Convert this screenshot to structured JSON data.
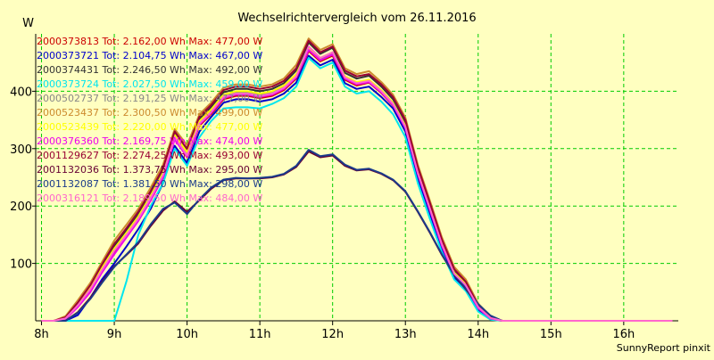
{
  "chart_data": {
    "type": "line",
    "title": "Wechselrichtervergleich vom 26.11.2016",
    "ylabel": "W",
    "xlabel": "",
    "footer": "SunnyReport pinxit",
    "background": "#ffffc0",
    "grid_color": "#00cc00",
    "grid": true,
    "legend_position": "top-left",
    "xlim": [
      7.92,
      16.75
    ],
    "ylim": [
      0,
      500
    ],
    "x_ticks": [
      8,
      9,
      10,
      11,
      12,
      13,
      14,
      15,
      16
    ],
    "x_tick_labels": [
      "8h",
      "9h",
      "10h",
      "11h",
      "12h",
      "13h",
      "14h",
      "15h",
      "16h"
    ],
    "y_ticks": [
      100,
      200,
      300,
      400
    ],
    "y_tick_labels": [
      "100",
      "200",
      "300",
      "400"
    ],
    "x": [
      8.0,
      8.17,
      8.33,
      8.5,
      8.67,
      8.83,
      9.0,
      9.17,
      9.33,
      9.5,
      9.67,
      9.83,
      10.0,
      10.17,
      10.33,
      10.5,
      10.67,
      10.83,
      11.0,
      11.17,
      11.33,
      11.5,
      11.67,
      11.83,
      12.0,
      12.17,
      12.33,
      12.5,
      12.67,
      12.83,
      13.0,
      13.17,
      13.33,
      13.5,
      13.67,
      13.83,
      14.0,
      14.17,
      14.33,
      14.5,
      14.67,
      14.83,
      15.0,
      15.17,
      15.33,
      15.5,
      15.67,
      15.83,
      16.0,
      16.17,
      16.33,
      16.5,
      16.67
    ],
    "series": [
      {
        "name": "2000373813",
        "legend": "2000373813 Tot: 2.162,00 Wh Max: 477,00 W",
        "color": "#cc0000",
        "values": [
          0,
          0,
          3,
          26,
          52,
          86,
          118,
          148,
          175,
          210,
          250,
          318,
          285,
          340,
          360,
          386,
          392,
          392,
          388,
          392,
          402,
          422,
          470,
          452,
          462,
          420,
          410,
          415,
          397,
          375,
          335,
          255,
          195,
          130,
          80,
          60,
          22,
          5,
          0,
          0,
          0,
          0,
          0,
          0,
          0,
          0,
          0,
          0,
          0,
          0,
          0,
          0,
          0
        ]
      },
      {
        "name": "2000373721",
        "legend": "2000373721 Tot: 2.104,75 Wh Max: 467,00 W",
        "color": "#0000cc",
        "values": [
          0,
          0,
          0,
          10,
          40,
          72,
          100,
          130,
          160,
          195,
          240,
          305,
          275,
          330,
          355,
          380,
          386,
          386,
          382,
          386,
          396,
          415,
          462,
          445,
          455,
          414,
          404,
          408,
          390,
          370,
          330,
          250,
          190,
          125,
          75,
          55,
          18,
          3,
          0,
          0,
          0,
          0,
          0,
          0,
          0,
          0,
          0,
          0,
          0,
          0,
          0,
          0,
          0
        ]
      },
      {
        "name": "2000374431",
        "legend": "2000374431 Tot: 2.246,50 Wh Max: 492,00 W",
        "color": "#333333",
        "values": [
          0,
          0,
          5,
          30,
          60,
          95,
          130,
          158,
          185,
          222,
          262,
          328,
          298,
          352,
          372,
          398,
          404,
          404,
          400,
          404,
          414,
          436,
          485,
          465,
          476,
          432,
          422,
          427,
          408,
          386,
          346,
          265,
          205,
          140,
          88,
          66,
          26,
          6,
          0,
          0,
          0,
          0,
          0,
          0,
          0,
          0,
          0,
          0,
          0,
          0,
          0,
          0,
          0
        ]
      },
      {
        "name": "2000373724",
        "legend": "2000373724 Tot: 2.027,50 Wh Max: 459,00 W",
        "color": "#00e5ee",
        "values": [
          0,
          0,
          0,
          0,
          0,
          0,
          0,
          70,
          150,
          200,
          240,
          300,
          270,
          320,
          348,
          370,
          372,
          372,
          370,
          378,
          388,
          408,
          458,
          440,
          450,
          408,
          396,
          400,
          382,
          360,
          320,
          240,
          180,
          120,
          72,
          52,
          16,
          2,
          0,
          0,
          0,
          0,
          0,
          0,
          0,
          0,
          0,
          0,
          0,
          0,
          0,
          0,
          0
        ]
      },
      {
        "name": "2000502737",
        "legend": "2000502737 Tot: 2.191,25 Wh Max: 477,00 W",
        "color": "#888888",
        "values": [
          0,
          0,
          4,
          28,
          56,
          90,
          124,
          152,
          180,
          215,
          255,
          322,
          290,
          346,
          366,
          392,
          398,
          398,
          394,
          398,
          408,
          428,
          472,
          456,
          466,
          424,
          414,
          418,
          400,
          378,
          338,
          258,
          198,
          134,
          82,
          62,
          24,
          5,
          0,
          0,
          0,
          0,
          0,
          0,
          0,
          0,
          0,
          0,
          0,
          0,
          0,
          0,
          0
        ]
      },
      {
        "name": "2000523437",
        "legend": "2000523437 Tot: 2.300,50 Wh Max: 499,00 W",
        "color": "#cc8a2e",
        "values": [
          0,
          0,
          8,
          36,
          66,
          102,
          140,
          168,
          195,
          232,
          272,
          334,
          306,
          360,
          380,
          406,
          412,
          412,
          408,
          412,
          422,
          446,
          492,
          472,
          482,
          440,
          430,
          435,
          416,
          394,
          354,
          272,
          212,
          146,
          94,
          72,
          30,
          8,
          0,
          0,
          0,
          0,
          0,
          0,
          0,
          0,
          0,
          0,
          0,
          0,
          0,
          0,
          0
        ]
      },
      {
        "name": "2000523439",
        "legend": "2000523439 Tot: 2.220,00 Wh Max: 477,00 W",
        "color": "#ffff00",
        "values": [
          0,
          0,
          5,
          30,
          58,
          92,
          126,
          154,
          182,
          218,
          258,
          324,
          294,
          348,
          368,
          394,
          400,
          400,
          396,
          400,
          410,
          430,
          475,
          458,
          468,
          426,
          416,
          420,
          402,
          380,
          340,
          260,
          200,
          136,
          84,
          64,
          25,
          5,
          0,
          0,
          0,
          0,
          0,
          0,
          0,
          0,
          0,
          0,
          0,
          0,
          0,
          0,
          0
        ]
      },
      {
        "name": "2000376360",
        "legend": "2000376360 Tot: 2.169,75 Wh Max: 474,00 W",
        "color": "#ee00ee",
        "values": [
          0,
          0,
          3,
          24,
          50,
          84,
          116,
          146,
          174,
          210,
          250,
          316,
          286,
          342,
          362,
          388,
          394,
          394,
          390,
          394,
          404,
          424,
          472,
          454,
          464,
          422,
          412,
          416,
          398,
          376,
          336,
          256,
          196,
          131,
          81,
          60,
          22,
          4,
          0,
          0,
          0,
          0,
          0,
          0,
          0,
          0,
          0,
          0,
          0,
          0,
          0,
          0,
          0
        ]
      },
      {
        "name": "2001129627",
        "legend": "2001129627 Tot: 2.274,25 Wh Max: 493,00 W",
        "color": "#990033",
        "values": [
          0,
          0,
          6,
          32,
          62,
          98,
          134,
          162,
          190,
          226,
          266,
          330,
          300,
          356,
          376,
          402,
          408,
          408,
          404,
          408,
          418,
          440,
          488,
          468,
          478,
          436,
          426,
          430,
          412,
          390,
          350,
          268,
          208,
          142,
          90,
          68,
          27,
          6,
          0,
          0,
          0,
          0,
          0,
          0,
          0,
          0,
          0,
          0,
          0,
          0,
          0,
          0,
          0
        ]
      },
      {
        "name": "2001132036",
        "legend": "2001132036 Tot: 1.373,75 Wh Max: 295,00 W",
        "color": "#660033",
        "values": [
          0,
          0,
          0,
          15,
          40,
          68,
          95,
          115,
          135,
          165,
          192,
          208,
          190,
          210,
          230,
          245,
          248,
          248,
          248,
          250,
          255,
          268,
          295,
          285,
          288,
          270,
          262,
          264,
          256,
          245,
          225,
          190,
          155,
          115,
          80,
          55,
          28,
          8,
          0,
          0,
          0,
          0,
          0,
          0,
          0,
          0,
          0,
          0,
          0,
          0,
          0,
          0,
          0
        ]
      },
      {
        "name": "2001132087",
        "legend": "2001132087 Tot: 1.381,50 Wh Max: 298,00 W",
        "color": "#1a3a8a",
        "values": [
          0,
          0,
          0,
          14,
          38,
          66,
          94,
          116,
          137,
          168,
          195,
          206,
          186,
          212,
          232,
          246,
          249,
          248,
          249,
          251,
          256,
          270,
          298,
          287,
          290,
          272,
          263,
          265,
          257,
          246,
          226,
          191,
          156,
          116,
          81,
          56,
          29,
          9,
          0,
          0,
          0,
          0,
          0,
          0,
          0,
          0,
          0,
          0,
          0,
          0,
          0,
          0,
          0
        ]
      },
      {
        "name": "2000316121",
        "legend": "2000316121 Tot: 2.189,50 Wh Max: 484,00 W",
        "color": "#ff66cc",
        "values": [
          0,
          0,
          4,
          27,
          55,
          88,
          122,
          150,
          178,
          214,
          254,
          320,
          288,
          344,
          364,
          390,
          396,
          396,
          392,
          396,
          406,
          426,
          478,
          458,
          468,
          424,
          414,
          418,
          400,
          378,
          338,
          258,
          198,
          134,
          82,
          62,
          24,
          5,
          0,
          0,
          0,
          0,
          0,
          0,
          0,
          0,
          0,
          0,
          0,
          0,
          0,
          0,
          0
        ]
      }
    ]
  }
}
